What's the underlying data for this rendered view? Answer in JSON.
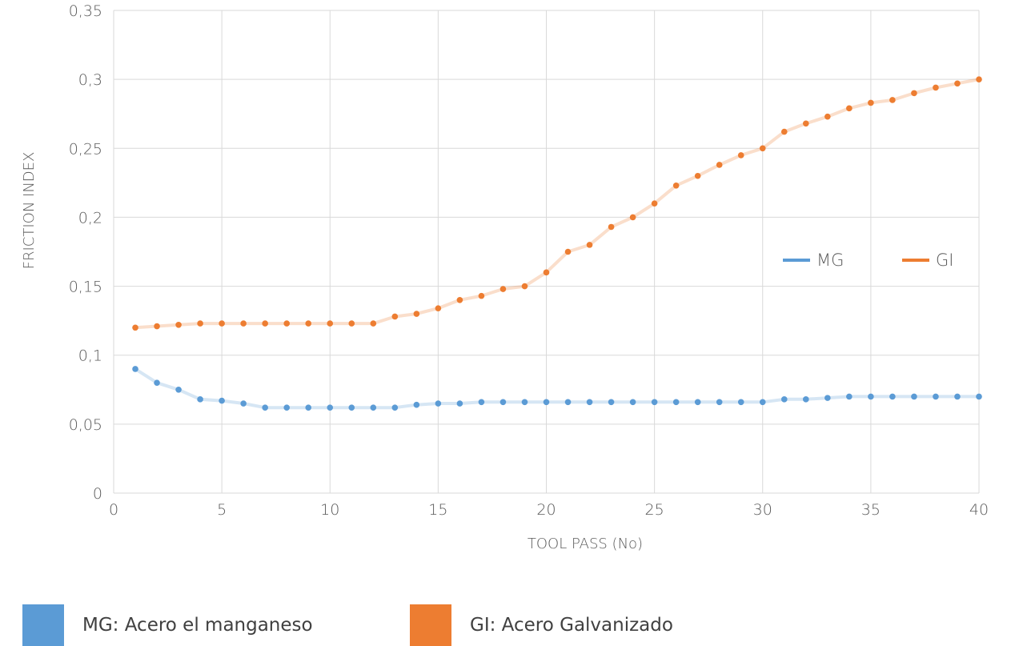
{
  "chart_data": {
    "type": "line",
    "xlabel": "TOOL PASS (No)",
    "ylabel": "FRICTION INDEX",
    "xlim": [
      0,
      40
    ],
    "ylim": [
      0,
      0.35
    ],
    "x_ticks": [
      "0",
      "5",
      "10",
      "15",
      "20",
      "25",
      "30",
      "35",
      "40"
    ],
    "y_ticks": [
      "0",
      "0,05",
      "0,1",
      "0,15",
      "0,2",
      "0,25",
      "0,3",
      "0,35"
    ],
    "grid": true,
    "legend_position": "right-middle",
    "x": [
      1,
      2,
      3,
      4,
      5,
      6,
      7,
      8,
      9,
      10,
      11,
      12,
      13,
      14,
      15,
      16,
      17,
      18,
      19,
      20,
      21,
      22,
      23,
      24,
      25,
      26,
      27,
      28,
      29,
      30,
      31,
      32,
      33,
      34,
      35,
      36,
      37,
      38,
      39,
      40
    ],
    "series": [
      {
        "name": "MG",
        "color": "#5b9bd5",
        "values": [
          0.09,
          0.08,
          0.075,
          0.068,
          0.067,
          0.065,
          0.062,
          0.062,
          0.062,
          0.062,
          0.062,
          0.062,
          0.062,
          0.064,
          0.065,
          0.065,
          0.066,
          0.066,
          0.066,
          0.066,
          0.066,
          0.066,
          0.066,
          0.066,
          0.066,
          0.066,
          0.066,
          0.066,
          0.066,
          0.066,
          0.068,
          0.068,
          0.069,
          0.07,
          0.07,
          0.07,
          0.07,
          0.07,
          0.07,
          0.07
        ]
      },
      {
        "name": "GI",
        "color": "#ed7d31",
        "values": [
          0.12,
          0.121,
          0.122,
          0.123,
          0.123,
          0.123,
          0.123,
          0.123,
          0.123,
          0.123,
          0.123,
          0.123,
          0.128,
          0.13,
          0.134,
          0.14,
          0.143,
          0.148,
          0.15,
          0.16,
          0.175,
          0.18,
          0.193,
          0.2,
          0.21,
          0.223,
          0.23,
          0.238,
          0.245,
          0.25,
          0.262,
          0.268,
          0.273,
          0.279,
          0.283,
          0.285,
          0.29,
          0.294,
          0.297,
          0.3
        ]
      }
    ]
  },
  "bottom_legend": [
    {
      "label": "MG: Acero el manganeso",
      "color": "#5b9bd5"
    },
    {
      "label": "GI: Acero Galvanizado",
      "color": "#ed7d31"
    }
  ]
}
